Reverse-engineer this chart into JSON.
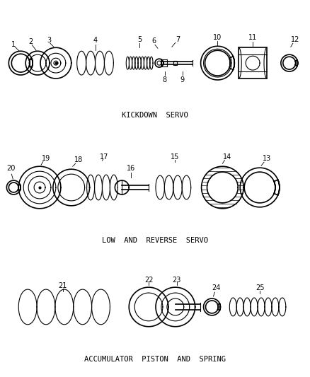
{
  "bg_color": "#ffffff",
  "line_color": "#000000",
  "section1_label": "KICKDOWN  SERVO",
  "section2_label": "LOW  AND  REVERSE  SERVO",
  "section3_label": "ACCUMULATOR  PISTON  AND  SPRING",
  "figsize": [
    4.38,
    5.33
  ],
  "dpi": 100
}
